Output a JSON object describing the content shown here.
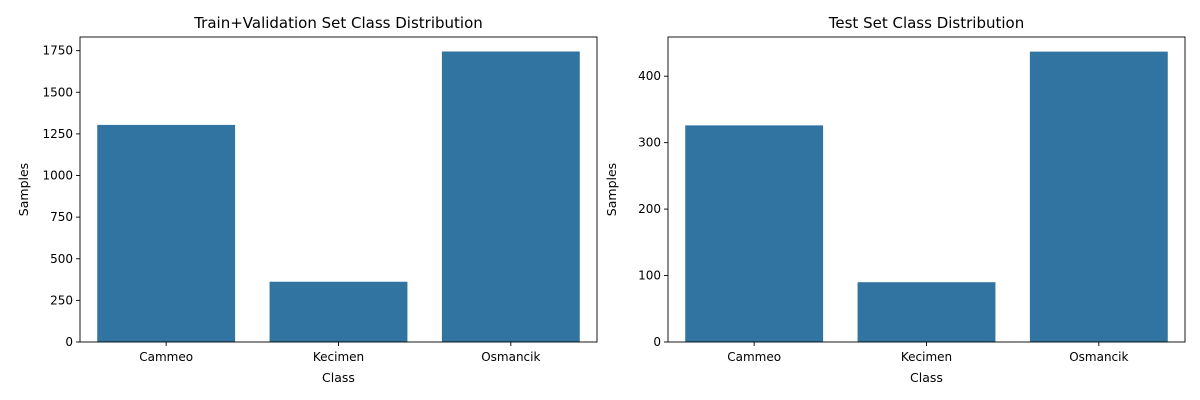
{
  "colors": {
    "bar": "#3274a1",
    "axis": "#000000",
    "background": "#ffffff"
  },
  "chart_data": [
    {
      "type": "bar",
      "title": "Train+Validation Set Class Distribution",
      "xlabel": "Class",
      "ylabel": "Samples",
      "categories": [
        "Cammeo",
        "Kecimen",
        "Osmancik"
      ],
      "values": [
        1304,
        362,
        1745
      ],
      "ylim": [
        0,
        1832
      ],
      "yticks": [
        0,
        250,
        500,
        750,
        1000,
        1250,
        1500,
        1750
      ],
      "grid": false
    },
    {
      "type": "bar",
      "title": "Test Set Class Distribution",
      "xlabel": "Class",
      "ylabel": "Samples",
      "categories": [
        "Cammeo",
        "Kecimen",
        "Osmancik"
      ],
      "values": [
        326,
        90,
        437
      ],
      "ylim": [
        0,
        459
      ],
      "yticks": [
        0,
        100,
        200,
        300,
        400
      ],
      "grid": false
    }
  ]
}
